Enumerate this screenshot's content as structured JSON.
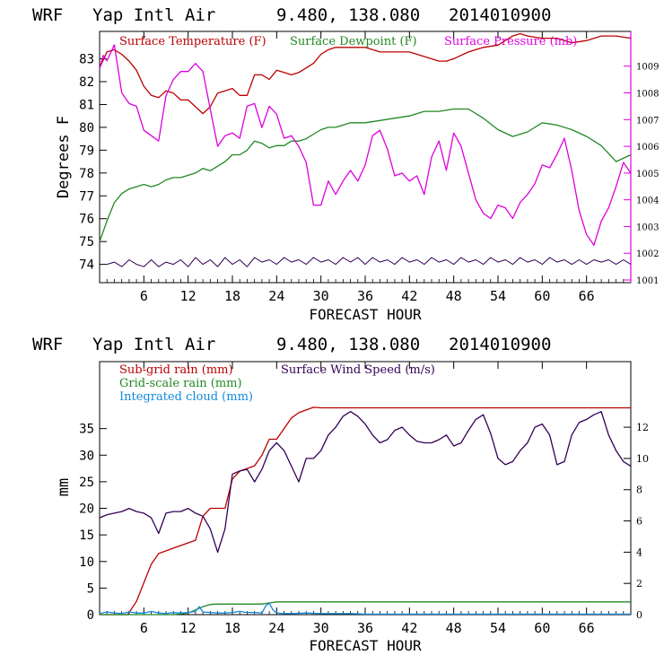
{
  "charts": [
    {
      "header": {
        "model": "WRF",
        "station": "Yap Intl Air",
        "coords": "9.480, 138.080",
        "init": "2014010900"
      },
      "xlabel": "FORECAST HOUR",
      "ylabel_left": "Degrees F",
      "legend": [
        {
          "label": "Surface Temperature (F)",
          "color": "#bb0000"
        },
        {
          "label": "Surface Dewpoint (F)",
          "color": "#228822"
        },
        {
          "label": "Surface Pressure (mb)",
          "color": "#dd00dd"
        }
      ]
    },
    {
      "header": {
        "model": "WRF",
        "station": "Yap Intl Air",
        "coords": "9.480, 138.080",
        "init": "2014010900"
      },
      "xlabel": "FORECAST HOUR",
      "ylabel_left": "mm",
      "legend": [
        {
          "label": "Sub-grid rain (mm)",
          "color": "#bb0000"
        },
        {
          "label": "Surface Wind Speed (m/s)",
          "color": "#330055"
        },
        {
          "label": "Grid-scale rain (mm)",
          "color": "#228822"
        },
        {
          "label": "Integrated cloud (mm)",
          "color": "#1188dd"
        }
      ]
    }
  ],
  "chart_data": [
    {
      "type": "line",
      "title": "WRF  Yap Intl Air  9.480, 138.080  2014010900",
      "xlabel": "FORECAST HOUR",
      "ylabel": "Degrees F",
      "xlim": [
        0,
        72
      ],
      "ylim": [
        73.2,
        84.2
      ],
      "y2lim": [
        1000.9,
        1010.3
      ],
      "xticks": [
        "6",
        "12",
        "18",
        "24",
        "30",
        "36",
        "42",
        "48",
        "54",
        "60",
        "66"
      ],
      "yticks": [
        "74",
        "75",
        "76",
        "77",
        "78",
        "79",
        "80",
        "81",
        "82",
        "83"
      ],
      "y2ticks": [
        "1001",
        "1002",
        "1003",
        "1004",
        "1005",
        "1006",
        "1007",
        "1008",
        "1009"
      ],
      "series": [
        {
          "name": "Surface Temperature (F)",
          "axis": "left",
          "color": "#bb0000",
          "x": [
            0,
            1,
            2,
            3,
            4,
            5,
            6,
            7,
            8,
            9,
            10,
            11,
            12,
            13,
            14,
            15,
            16,
            17,
            18,
            19,
            20,
            21,
            22,
            23,
            24,
            25,
            26,
            27,
            28,
            29,
            30,
            31,
            32,
            33,
            34,
            35,
            36,
            38,
            40,
            42,
            44,
            46,
            47,
            48,
            50,
            52,
            54,
            56,
            57,
            58,
            60,
            62,
            64,
            66,
            68,
            70,
            72
          ],
          "y": [
            82.6,
            83.3,
            83.4,
            83.2,
            82.9,
            82.5,
            81.8,
            81.4,
            81.3,
            81.6,
            81.5,
            81.2,
            81.2,
            80.9,
            80.6,
            80.9,
            81.5,
            81.6,
            81.7,
            81.4,
            81.4,
            82.3,
            82.3,
            82.1,
            82.5,
            82.4,
            82.3,
            82.4,
            82.6,
            82.8,
            83.2,
            83.4,
            83.5,
            83.5,
            83.5,
            83.5,
            83.5,
            83.3,
            83.3,
            83.3,
            83.1,
            82.9,
            82.9,
            83.0,
            83.3,
            83.5,
            83.6,
            84.0,
            84.1,
            84.0,
            83.9,
            83.9,
            83.7,
            83.8,
            84.0,
            84.0,
            83.9
          ]
        },
        {
          "name": "Surface Dewpoint (F)",
          "axis": "left",
          "color": "#228822",
          "x": [
            0,
            1,
            2,
            3,
            4,
            5,
            6,
            7,
            8,
            9,
            10,
            11,
            12,
            13,
            14,
            15,
            16,
            17,
            18,
            19,
            20,
            21,
            22,
            23,
            24,
            25,
            26,
            27,
            28,
            29,
            30,
            31,
            32,
            33,
            34,
            35,
            36,
            38,
            40,
            42,
            44,
            46,
            48,
            50,
            52,
            54,
            56,
            58,
            60,
            62,
            64,
            66,
            68,
            70,
            72
          ],
          "y": [
            75.0,
            75.9,
            76.7,
            77.1,
            77.3,
            77.4,
            77.5,
            77.4,
            77.5,
            77.7,
            77.8,
            77.8,
            77.9,
            78.0,
            78.2,
            78.1,
            78.3,
            78.5,
            78.8,
            78.8,
            79.0,
            79.4,
            79.3,
            79.1,
            79.2,
            79.2,
            79.4,
            79.4,
            79.5,
            79.7,
            79.9,
            80.0,
            80.0,
            80.1,
            80.2,
            80.2,
            80.2,
            80.3,
            80.4,
            80.5,
            80.7,
            80.7,
            80.8,
            80.8,
            80.4,
            79.9,
            79.6,
            79.8,
            80.2,
            80.1,
            79.9,
            79.6,
            79.2,
            78.5,
            78.8
          ]
        },
        {
          "name": "Surface Pressure (mb)",
          "axis": "right",
          "color": "#dd00dd",
          "x": [
            0,
            0.5,
            1,
            2,
            3,
            4,
            5,
            6,
            7,
            8,
            9,
            10,
            11,
            12,
            13,
            14,
            15,
            16,
            17,
            18,
            19,
            20,
            21,
            22,
            23,
            24,
            25,
            26,
            27,
            28,
            29,
            30,
            31,
            32,
            33,
            34,
            35,
            36,
            37,
            38,
            39,
            40,
            41,
            42,
            43,
            44,
            45,
            46,
            47,
            48,
            49,
            50,
            51,
            52,
            53,
            54,
            55,
            56,
            57,
            58,
            59,
            60,
            61,
            62,
            63,
            64,
            65,
            66,
            67,
            68,
            69,
            70,
            71,
            72
          ],
          "y": [
            1008.9,
            1009.4,
            1009.2,
            1009.8,
            1008.0,
            1007.6,
            1007.5,
            1006.6,
            1006.4,
            1006.2,
            1007.9,
            1008.5,
            1008.8,
            1008.8,
            1009.1,
            1008.8,
            1007.4,
            1006.0,
            1006.4,
            1006.5,
            1006.3,
            1007.5,
            1007.6,
            1006.7,
            1007.5,
            1007.2,
            1006.3,
            1006.4,
            1006.0,
            1005.4,
            1003.8,
            1003.8,
            1004.7,
            1004.2,
            1004.7,
            1005.1,
            1004.7,
            1005.3,
            1006.4,
            1006.6,
            1005.9,
            1004.9,
            1005.0,
            1004.7,
            1004.9,
            1004.2,
            1005.6,
            1006.2,
            1005.1,
            1006.5,
            1006.0,
            1005.0,
            1004.0,
            1003.5,
            1003.3,
            1003.8,
            1003.7,
            1003.3,
            1003.9,
            1004.2,
            1004.6,
            1005.3,
            1005.2,
            1005.7,
            1006.3,
            1005.1,
            1003.6,
            1002.7,
            1002.3,
            1003.2,
            1003.7,
            1004.5,
            1005.4,
            1005.0
          ]
        },
        {
          "name": "",
          "axis": "left",
          "color": "#330055",
          "style": "zigzag",
          "x": [
            1,
            2,
            3,
            4,
            5,
            6,
            7,
            8,
            9,
            10,
            11,
            12,
            13,
            14,
            15,
            16,
            17,
            18,
            19,
            20,
            21,
            22,
            23,
            24,
            25,
            26,
            27,
            28,
            29,
            30,
            31,
            32,
            33,
            34,
            35,
            36,
            37,
            38,
            39,
            40,
            41,
            42,
            43,
            44,
            45,
            46,
            47,
            48,
            49,
            50,
            51,
            52,
            53,
            54,
            55,
            56,
            57,
            58,
            59,
            60,
            61,
            62,
            63,
            64,
            65,
            66,
            67,
            68,
            69,
            70,
            71,
            72
          ],
          "y": [
            74.0,
            74.1,
            73.9,
            74.2,
            74.0,
            73.9,
            74.2,
            73.9,
            74.1,
            74.0,
            74.2,
            73.9,
            74.3,
            74.0,
            74.2,
            73.9,
            74.3,
            74.0,
            74.2,
            73.9,
            74.3,
            74.1,
            74.2,
            74.0,
            74.3,
            74.1,
            74.2,
            74.0,
            74.3,
            74.1,
            74.2,
            74.0,
            74.3,
            74.1,
            74.3,
            74.0,
            74.3,
            74.1,
            74.2,
            74.0,
            74.3,
            74.1,
            74.2,
            74.0,
            74.3,
            74.1,
            74.2,
            74.0,
            74.3,
            74.1,
            74.2,
            74.0,
            74.3,
            74.1,
            74.2,
            74.0,
            74.3,
            74.1,
            74.2,
            74.0,
            74.3,
            74.1,
            74.2,
            74.0,
            74.2,
            74.0,
            74.2,
            74.1,
            74.2,
            74.0,
            74.2,
            74.0
          ]
        }
      ]
    },
    {
      "type": "line",
      "title": "WRF  Yap Intl Air  9.480, 138.080  2014010900",
      "xlabel": "FORECAST HOUR",
      "ylabel": "mm",
      "xlim": [
        0,
        72
      ],
      "ylim": [
        0,
        47.6
      ],
      "y2lim": [
        0,
        16.2
      ],
      "xticks": [
        "6",
        "12",
        "18",
        "24",
        "30",
        "36",
        "42",
        "48",
        "54",
        "60",
        "66"
      ],
      "yticks": [
        "0",
        "5",
        "10",
        "15",
        "20",
        "25",
        "30",
        "35"
      ],
      "y2ticks": [
        "0",
        "2",
        "4",
        "6",
        "8",
        "10",
        "12"
      ],
      "series": [
        {
          "name": "Sub-grid rain (mm)",
          "axis": "left",
          "color": "#bb0000",
          "x": [
            0,
            3.8,
            5,
            6,
            7,
            8,
            9,
            10,
            11,
            12,
            13,
            14,
            15,
            16,
            17,
            18,
            19,
            20,
            21,
            22,
            23,
            24,
            25,
            26,
            27,
            28,
            29,
            30,
            72
          ],
          "y": [
            0,
            0,
            2.5,
            6.0,
            9.5,
            11.5,
            12.0,
            12.5,
            13.0,
            13.5,
            14.0,
            18.5,
            20.0,
            20.0,
            20.0,
            25.5,
            27.0,
            27.5,
            28.0,
            30.0,
            33.0,
            33.0,
            35.0,
            37.0,
            38.0,
            38.5,
            39.0,
            38.9,
            38.9
          ]
        },
        {
          "name": "Surface Wind Speed (m/s)",
          "axis": "right",
          "color": "#330055",
          "x": [
            0,
            1,
            2,
            3,
            4,
            5,
            6,
            7,
            8,
            9,
            10,
            11,
            12,
            13,
            14,
            15,
            16,
            17,
            18,
            19,
            20,
            21,
            22,
            23,
            24,
            25,
            26,
            27,
            28,
            29,
            30,
            31,
            32,
            33,
            34,
            35,
            36,
            37,
            38,
            39,
            40,
            41,
            42,
            43,
            44,
            45,
            46,
            47,
            48,
            49,
            50,
            51,
            52,
            53,
            54,
            55,
            56,
            57,
            58,
            59,
            60,
            61,
            62,
            63,
            64,
            65,
            66,
            67,
            68,
            69,
            70,
            71,
            72
          ],
          "y": [
            6.2,
            6.4,
            6.5,
            6.6,
            6.8,
            6.6,
            6.5,
            6.2,
            5.2,
            6.5,
            6.6,
            6.6,
            6.8,
            6.5,
            6.3,
            5.5,
            4.0,
            5.5,
            9.0,
            9.2,
            9.3,
            8.5,
            9.3,
            10.5,
            11.0,
            10.5,
            9.5,
            8.5,
            10.0,
            10.0,
            10.5,
            11.5,
            12.0,
            12.7,
            13.0,
            12.7,
            12.2,
            11.5,
            11.0,
            11.2,
            11.8,
            12.0,
            11.5,
            11.1,
            11.0,
            11.0,
            11.2,
            11.5,
            10.8,
            11.0,
            11.8,
            12.5,
            12.8,
            11.6,
            10.0,
            9.6,
            9.8,
            10.5,
            11.0,
            12.0,
            12.2,
            11.5,
            9.6,
            9.8,
            11.5,
            12.3,
            12.5,
            12.8,
            13.0,
            11.5,
            10.5,
            9.8,
            9.5
          ]
        },
        {
          "name": "Grid-scale rain (mm)",
          "axis": "left",
          "color": "#228822",
          "x": [
            0,
            10,
            12,
            13,
            14,
            15,
            16,
            22,
            23,
            24,
            72
          ],
          "y": [
            0,
            0,
            0.3,
            0.9,
            1.5,
            1.9,
            2.0,
            2.0,
            2.2,
            2.4,
            2.4
          ]
        },
        {
          "name": "Integrated cloud (mm)",
          "axis": "left",
          "color": "#1188dd",
          "x": [
            0,
            1,
            2,
            3,
            4,
            5,
            6,
            7,
            8,
            9,
            10,
            11,
            12,
            13,
            13.5,
            14,
            15,
            16,
            17,
            18,
            19,
            20,
            21,
            22,
            22.5,
            23,
            23.5,
            24,
            25,
            26,
            28,
            30,
            32,
            34,
            36,
            40,
            44,
            48,
            52,
            56,
            60,
            64,
            68,
            72
          ],
          "y": [
            0.2,
            0.5,
            0.3,
            0.2,
            0.5,
            0.3,
            0.3,
            0.6,
            0.3,
            0.2,
            0.4,
            0.3,
            0.4,
            0.6,
            1.5,
            0.5,
            0.4,
            0.3,
            0.3,
            0.4,
            0.6,
            0.4,
            0.4,
            0.3,
            1.6,
            2.2,
            0.9,
            0.3,
            0.2,
            0.2,
            0.3,
            0.2,
            0.2,
            0.2,
            0.1,
            0.1,
            0.1,
            0.1,
            0.1,
            0.1,
            0.1,
            0.1,
            0.1,
            0.1
          ]
        }
      ]
    }
  ]
}
